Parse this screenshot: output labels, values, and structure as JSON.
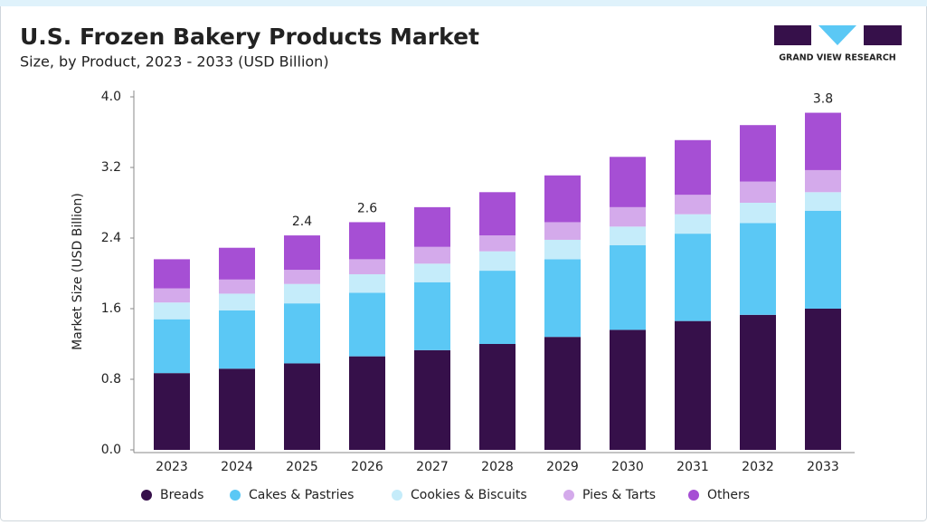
{
  "brand": "GRAND VIEW RESEARCH",
  "chart_data": {
    "type": "stacked-bar",
    "title": "U.S. Frozen Bakery Products Market",
    "subtitle": "Size, by Product, 2023 - 2033 (USD Billion)",
    "y_label": "Market Size (USD Billion)",
    "categories": [
      "2023",
      "2024",
      "2025",
      "2026",
      "2027",
      "2028",
      "2029",
      "2030",
      "2031",
      "2032",
      "2033"
    ],
    "series": [
      {
        "name": "Breads",
        "color": "#36104a",
        "values": [
          0.87,
          0.92,
          0.98,
          1.06,
          1.13,
          1.2,
          1.28,
          1.36,
          1.46,
          1.53,
          1.6
        ]
      },
      {
        "name": "Cakes & Pastries",
        "color": "#5bc8f5",
        "values": [
          0.61,
          0.66,
          0.68,
          0.72,
          0.77,
          0.83,
          0.88,
          0.96,
          0.99,
          1.04,
          1.11
        ]
      },
      {
        "name": "Cookies & Biscuits",
        "color": "#c5ecfa",
        "values": [
          0.19,
          0.19,
          0.22,
          0.21,
          0.21,
          0.22,
          0.22,
          0.21,
          0.22,
          0.23,
          0.21
        ]
      },
      {
        "name": "Pies & Tarts",
        "color": "#d4aaeb",
        "values": [
          0.16,
          0.16,
          0.16,
          0.17,
          0.19,
          0.18,
          0.2,
          0.22,
          0.22,
          0.24,
          0.25
        ]
      },
      {
        "name": "Others",
        "color": "#a64fd4",
        "values": [
          0.33,
          0.36,
          0.39,
          0.42,
          0.45,
          0.49,
          0.53,
          0.57,
          0.62,
          0.64,
          0.65
        ]
      }
    ],
    "totals": [
      null,
      null,
      2.4,
      2.6,
      null,
      null,
      null,
      null,
      null,
      null,
      3.8
    ],
    "ylim": [
      0,
      4.0
    ],
    "yticks": [
      {
        "value": 0,
        "label": "0.0"
      },
      0.8,
      1.6,
      2.4,
      3.2,
      {
        "value": 4,
        "label": "4.0"
      }
    ],
    "grid": false
  }
}
